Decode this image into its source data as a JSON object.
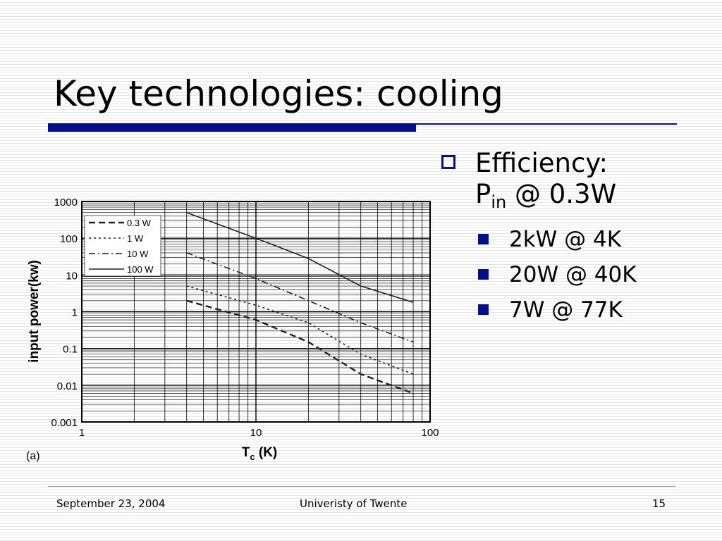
{
  "slide": {
    "title": "Key technologies: cooling",
    "bullets": {
      "main_line1": "Efficiency:",
      "main_line2_prefix": "P",
      "main_line2_sub": "in",
      "main_line2_suffix": " @ 0.3W",
      "items": [
        "2kW @ 4K",
        "20W @ 40K",
        "7W @ 77K"
      ]
    },
    "footer": {
      "date": "September 23, 2004",
      "org": "Univeristy of Twente",
      "page": "15"
    }
  },
  "colors": {
    "accent": "#000f8c"
  },
  "chart_data": {
    "type": "line",
    "x_scale": "log",
    "y_scale": "log",
    "xlim": [
      1,
      100
    ],
    "ylim": [
      0.001,
      1000
    ],
    "grid": true,
    "xlabel": "T",
    "xlabel_sub": "c",
    "xlabel_unit": " (K)",
    "ylabel": "input power(kw)",
    "panel_label": "(a)",
    "x_ticks": [
      "1",
      "10",
      "100"
    ],
    "y_ticks": [
      "1000",
      "100",
      "10",
      "1",
      "0.1",
      "0.01",
      "0.001"
    ],
    "legend_position": "top-left",
    "series": [
      {
        "name": "0.3 W",
        "style": "dashed",
        "x": [
          4,
          10,
          20,
          40,
          80
        ],
        "y": [
          2,
          0.6,
          0.15,
          0.02,
          0.006
        ]
      },
      {
        "name": "1 W",
        "style": "dotted",
        "x": [
          4,
          10,
          20,
          40,
          80
        ],
        "y": [
          5,
          1.5,
          0.5,
          0.07,
          0.02
        ]
      },
      {
        "name": "10 W",
        "style": "dashdot",
        "x": [
          4,
          10,
          20,
          40,
          80
        ],
        "y": [
          40,
          8,
          2,
          0.5,
          0.15
        ]
      },
      {
        "name": "100 W",
        "style": "solid",
        "x": [
          4,
          10,
          20,
          40,
          80
        ],
        "y": [
          500,
          100,
          28,
          5,
          1.8
        ]
      }
    ]
  }
}
